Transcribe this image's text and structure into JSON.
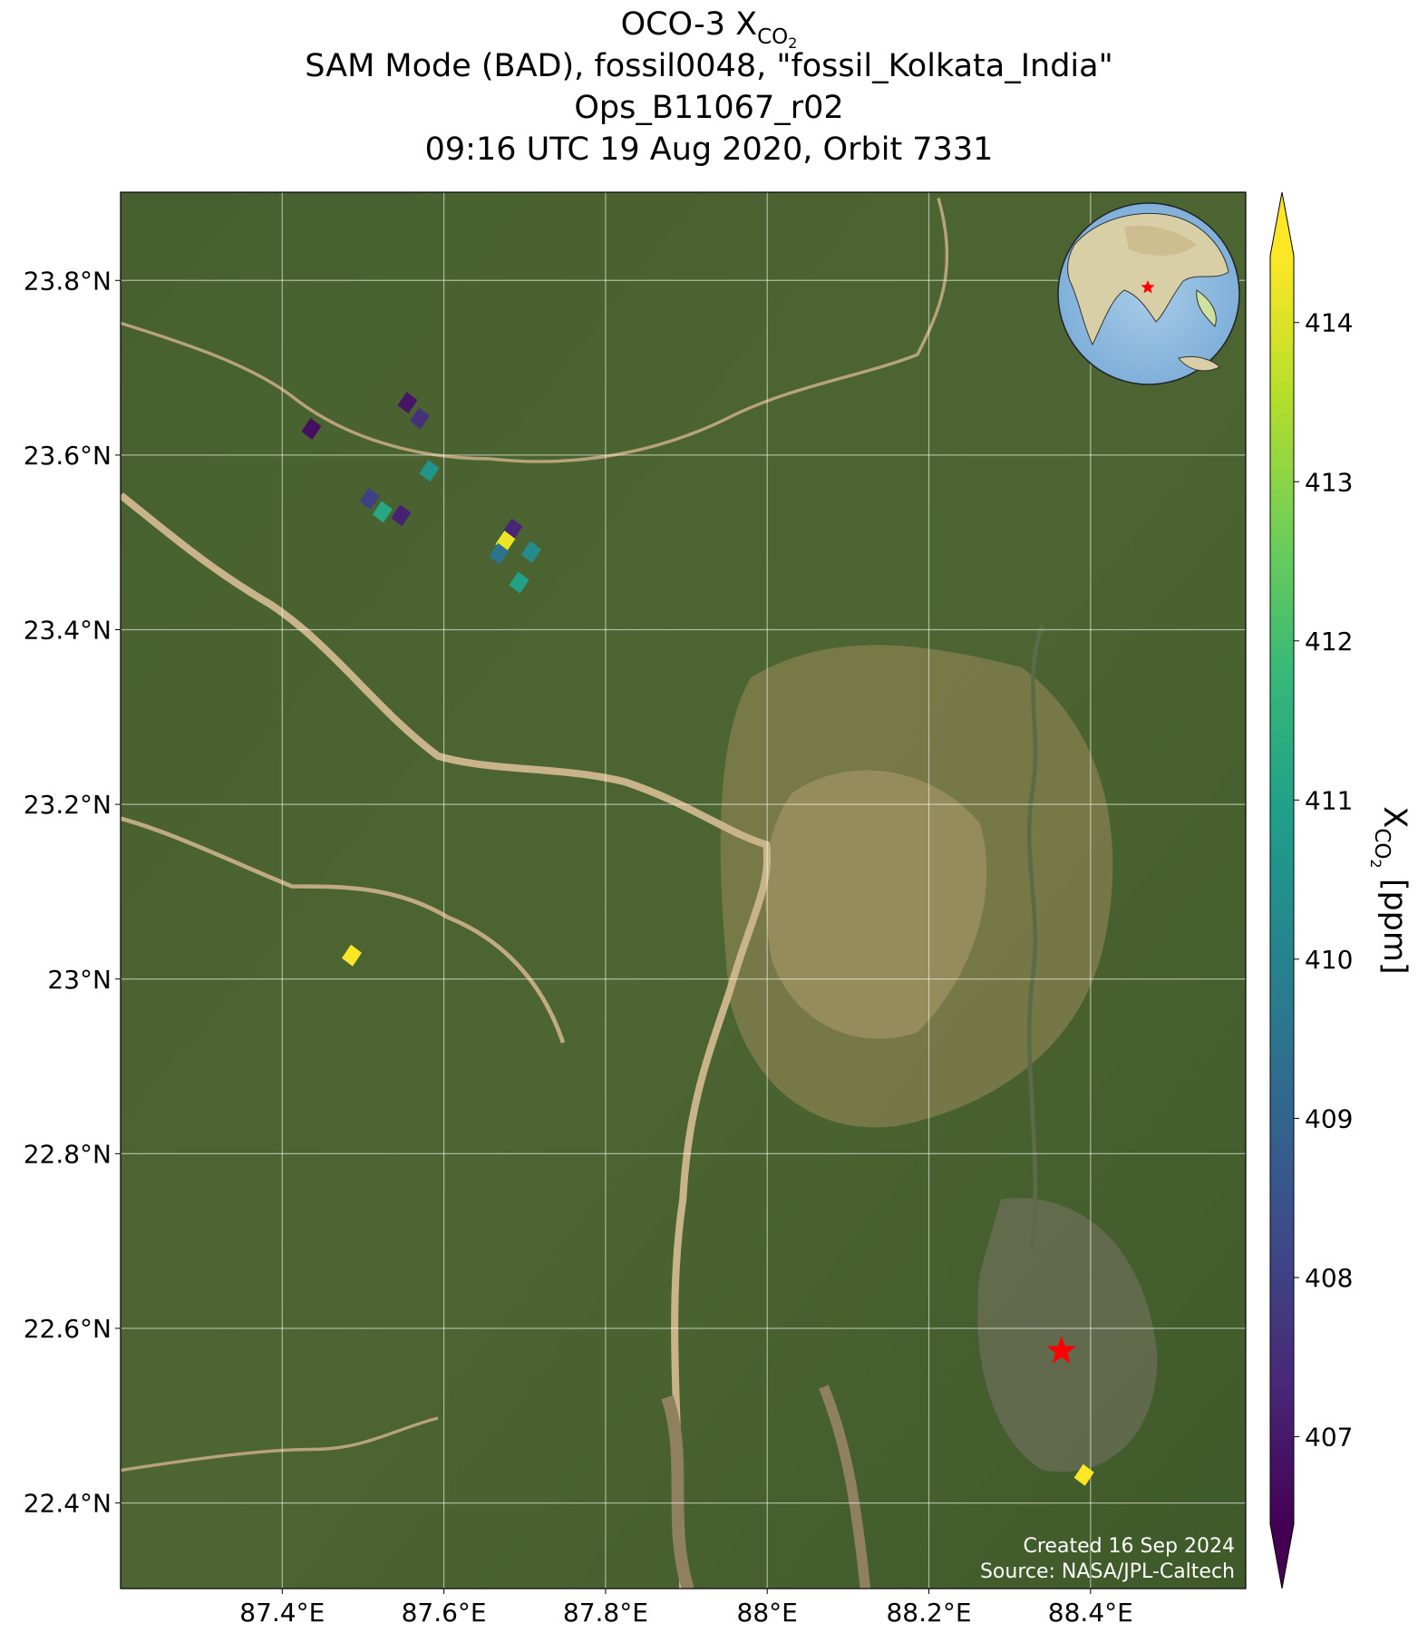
{
  "chart_data": {
    "type": "map",
    "title_prefix": "OCO-3 X",
    "title_sub": "CO",
    "title_sub2": "2",
    "subtitle_lines": [
      "SAM Mode (BAD), fossil0048, \"fossil_Kolkata_India\"",
      "Ops_B11067_r02",
      "09:16 UTC 19 Aug 2020, Orbit 7331"
    ],
    "xlim": [
      87.2,
      88.592
    ],
    "ylim": [
      22.302,
      23.901
    ],
    "xticks": [
      {
        "value": 87.4,
        "label": "87.4°E"
      },
      {
        "value": 87.6,
        "label": "87.6°E"
      },
      {
        "value": 87.8,
        "label": "87.8°E"
      },
      {
        "value": 88.0,
        "label": "88°E"
      },
      {
        "value": 88.2,
        "label": "88.2°E"
      },
      {
        "value": 88.4,
        "label": "88.4°E"
      }
    ],
    "yticks": [
      {
        "value": 22.4,
        "label": "22.4°N"
      },
      {
        "value": 22.6,
        "label": "22.6°N"
      },
      {
        "value": 22.8,
        "label": "22.8°N"
      },
      {
        "value": 23.0,
        "label": "23°N"
      },
      {
        "value": 23.2,
        "label": "23.2°N"
      },
      {
        "value": 23.4,
        "label": "23.4°N"
      },
      {
        "value": 23.6,
        "label": "23.6°N"
      },
      {
        "value": 23.8,
        "label": "23.8°N"
      }
    ],
    "grid": true,
    "colormap": "viridis",
    "clim": [
      406.45,
      414.42
    ],
    "cticks": [
      407,
      408,
      409,
      410,
      411,
      412,
      413,
      414
    ],
    "colorbar_label_prefix": "X",
    "colorbar_label_sub": "CO",
    "colorbar_label_sub2": "2",
    "colorbar_label_suffix": " [ppm]",
    "footprints": [
      {
        "lon": 87.436,
        "lat": 23.63,
        "xco2": 406.8
      },
      {
        "lon": 87.555,
        "lat": 23.66,
        "xco2": 406.9
      },
      {
        "lon": 87.57,
        "lat": 23.642,
        "xco2": 407.6
      },
      {
        "lon": 87.582,
        "lat": 23.582,
        "xco2": 410.6
      },
      {
        "lon": 87.508,
        "lat": 23.55,
        "xco2": 408.0
      },
      {
        "lon": 87.524,
        "lat": 23.535,
        "xco2": 411.2
      },
      {
        "lon": 87.547,
        "lat": 23.531,
        "xco2": 407.2
      },
      {
        "lon": 87.685,
        "lat": 23.515,
        "xco2": 407.3
      },
      {
        "lon": 87.676,
        "lat": 23.501,
        "xco2": 414.2
      },
      {
        "lon": 87.668,
        "lat": 23.487,
        "xco2": 409.5
      },
      {
        "lon": 87.708,
        "lat": 23.489,
        "xco2": 410.3
      },
      {
        "lon": 87.693,
        "lat": 23.454,
        "xco2": 411.0
      },
      {
        "lon": 87.486,
        "lat": 23.027,
        "xco2": 414.5
      },
      {
        "lon": 88.392,
        "lat": 22.432,
        "xco2": 414.5
      }
    ],
    "target": {
      "lon": 88.364,
      "lat": 22.574
    },
    "footer_lines": [
      "Created 16 Sep 2024",
      "Source: NASA/JPL-Caltech"
    ]
  }
}
